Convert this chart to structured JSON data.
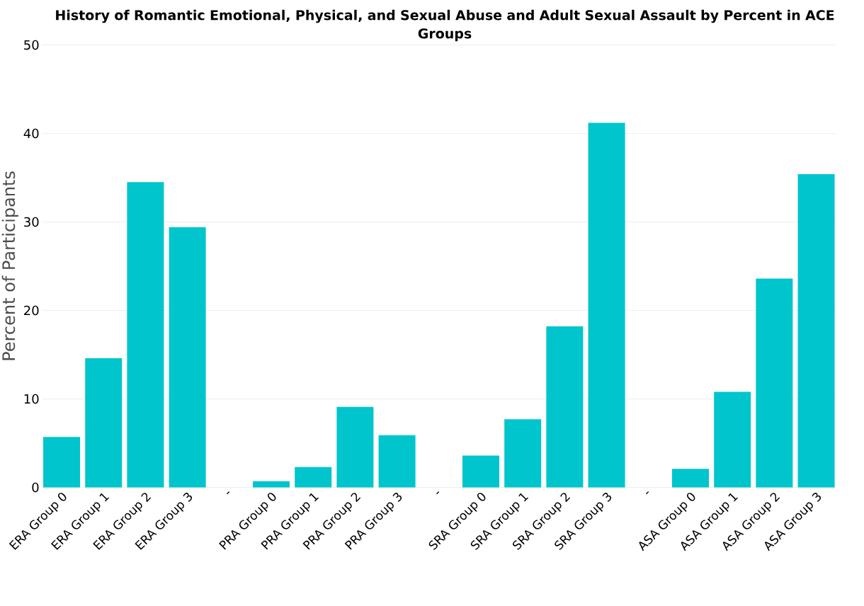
{
  "chart_data": {
    "type": "bar",
    "title": "History of Romantic Emotional, Physical, and Sexual Abuse and Adult Sexual Assault by Percent in ACE Groups",
    "ylabel": "Percent of Participants",
    "categories": [
      "ERA Group 0",
      "ERA Group 1",
      "ERA Group 2",
      "ERA Group 3",
      "-",
      "PRA Group 0",
      "PRA Group 1",
      "PRA Group 2",
      "PRA Group 3",
      "-",
      "SRA Group 0",
      "SRA Group 1",
      "SRA Group 2",
      "SRA Group 3",
      "-",
      "ASA Group 0",
      "ASA Group 1",
      "ASA Group 2",
      "ASA Group 3"
    ],
    "values": [
      5.7,
      14.6,
      34.5,
      29.4,
      null,
      0.7,
      2.3,
      9.1,
      5.9,
      null,
      3.6,
      7.7,
      18.2,
      41.2,
      null,
      2.1,
      10.8,
      23.6,
      35.4
    ],
    "color": "#00c5cc",
    "ylim": [
      0,
      50
    ],
    "yticks": [
      0,
      10,
      20,
      30,
      40,
      50
    ],
    "grid": "y"
  }
}
